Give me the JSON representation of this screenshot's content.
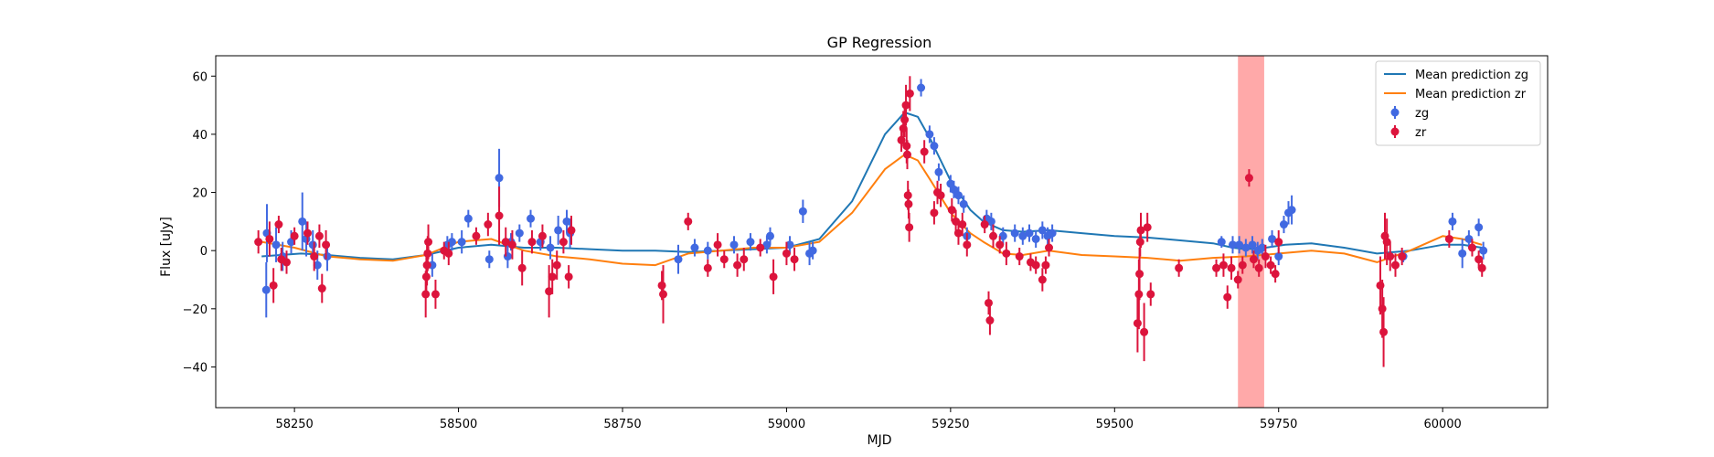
{
  "chart_data": {
    "type": "scatter",
    "title": "GP Regression",
    "xlabel": "MJD",
    "ylabel": "Flux [uJy]",
    "xlim": [
      58130,
      60160
    ],
    "ylim": [
      -54,
      67
    ],
    "xticks": [
      58250,
      58500,
      58750,
      59000,
      59250,
      59500,
      59750,
      60000
    ],
    "yticks": [
      -40,
      -20,
      0,
      20,
      40,
      60
    ],
    "xtick_labels": [
      "58250",
      "58500",
      "58750",
      "59000",
      "59250",
      "59500",
      "59750",
      "60000"
    ],
    "ytick_labels": [
      "−40",
      "−20",
      "0",
      "20",
      "40",
      "60"
    ],
    "grid": false,
    "legend_position": "top-right",
    "highlight_band": {
      "x": [
        59688,
        59728
      ],
      "color": "#ff9a9a"
    },
    "series": [
      {
        "name": "Mean prediction zg",
        "kind": "line",
        "color": "#1f77b4",
        "x": [
          58200,
          58260,
          58300,
          58350,
          58400,
          58450,
          58500,
          58550,
          58600,
          58650,
          58700,
          58750,
          58800,
          58850,
          58900,
          58950,
          59000,
          59050,
          59100,
          59150,
          59180,
          59200,
          59220,
          59250,
          59280,
          59300,
          59330,
          59360,
          59400,
          59450,
          59500,
          59550,
          59600,
          59650,
          59680,
          59700,
          59730,
          59760,
          59800,
          59850,
          59900,
          59950,
          60000,
          60030,
          60060
        ],
        "y": [
          -2,
          -1,
          -1.5,
          -2.5,
          -3,
          -1.5,
          1,
          2,
          1,
          1,
          0.5,
          0,
          0,
          -0.5,
          0,
          0.5,
          1,
          4,
          17,
          40,
          47.5,
          46,
          38,
          24,
          14,
          10,
          7,
          6.5,
          7,
          6,
          5,
          4.5,
          3.5,
          2.5,
          1,
          0.5,
          1,
          2,
          2.5,
          1,
          -1,
          0,
          2,
          2,
          1
        ]
      },
      {
        "name": "Mean prediction zr",
        "kind": "line",
        "color": "#ff7f0e",
        "x": [
          58200,
          58250,
          58300,
          58350,
          58400,
          58450,
          58500,
          58550,
          58600,
          58650,
          58700,
          58750,
          58800,
          58850,
          58900,
          58950,
          59000,
          59050,
          59100,
          59150,
          59180,
          59200,
          59220,
          59250,
          59280,
          59300,
          59330,
          59360,
          59400,
          59450,
          59500,
          59550,
          59600,
          59650,
          59700,
          59750,
          59800,
          59850,
          59900,
          59950,
          60000,
          60030,
          60060
        ],
        "y": [
          3,
          1,
          -2,
          -3,
          -3.5,
          -1.5,
          3,
          4,
          0,
          -2,
          -3,
          -4.5,
          -5,
          -1,
          0,
          1,
          1,
          3,
          13,
          28,
          33,
          31,
          24,
          13,
          6,
          3,
          -1,
          -1.5,
          0,
          -1.5,
          -2,
          -2.5,
          -3.5,
          -2.5,
          -2,
          -1,
          0,
          -1,
          -4,
          0,
          5,
          4,
          2
        ]
      },
      {
        "name": "zg",
        "kind": "errorbar",
        "color": "#4169e1",
        "points": [
          [
            58207,
            -13.5,
            9.5
          ],
          [
            58208,
            6,
            10
          ],
          [
            58222,
            2,
            6
          ],
          [
            58232,
            -2,
            5
          ],
          [
            58245,
            3,
            4
          ],
          [
            58262,
            10,
            10
          ],
          [
            58268,
            4,
            6
          ],
          [
            58278,
            2,
            5
          ],
          [
            58285,
            -5,
            5
          ],
          [
            58300,
            -2,
            5
          ],
          [
            58460,
            -5,
            4
          ],
          [
            58483,
            2,
            3
          ],
          [
            58490,
            3,
            3
          ],
          [
            58505,
            3,
            4
          ],
          [
            58515,
            11,
            3
          ],
          [
            58547,
            -3,
            3
          ],
          [
            58562,
            25,
            10
          ],
          [
            58575,
            -2,
            4
          ],
          [
            58580,
            3,
            3
          ],
          [
            58593,
            6,
            3
          ],
          [
            58610,
            11,
            3
          ],
          [
            58625,
            3,
            3
          ],
          [
            58640,
            1,
            4
          ],
          [
            58652,
            7,
            5
          ],
          [
            58665,
            10,
            4
          ],
          [
            58670,
            6,
            5
          ],
          [
            58835,
            -3,
            5
          ],
          [
            58860,
            1,
            3
          ],
          [
            58880,
            0,
            3
          ],
          [
            58920,
            2,
            3
          ],
          [
            58945,
            3,
            3
          ],
          [
            58970,
            2,
            3
          ],
          [
            58975,
            5,
            3
          ],
          [
            59005,
            2,
            3
          ],
          [
            59025,
            13.5,
            4
          ],
          [
            59035,
            -1,
            4
          ],
          [
            59040,
            0,
            3
          ],
          [
            59205,
            56,
            3
          ],
          [
            59218,
            40,
            3
          ],
          [
            59225,
            36,
            3
          ],
          [
            59232,
            27,
            3
          ],
          [
            59250,
            23,
            3
          ],
          [
            59255,
            21,
            3
          ],
          [
            59262,
            19,
            3
          ],
          [
            59270,
            16,
            3
          ],
          [
            59275,
            5,
            3
          ],
          [
            59305,
            11,
            3
          ],
          [
            59312,
            10,
            3
          ],
          [
            59330,
            5,
            3
          ],
          [
            59348,
            6,
            3
          ],
          [
            59360,
            5,
            3
          ],
          [
            59370,
            6,
            3
          ],
          [
            59380,
            4,
            3
          ],
          [
            59390,
            7,
            3
          ],
          [
            59398,
            5,
            3
          ],
          [
            59405,
            6,
            3
          ],
          [
            59663,
            3,
            2
          ],
          [
            59680,
            2,
            3
          ],
          [
            59690,
            2,
            3
          ],
          [
            59700,
            1,
            3
          ],
          [
            59710,
            2,
            3
          ],
          [
            59718,
            0,
            3
          ],
          [
            59725,
            1,
            3
          ],
          [
            59740,
            4,
            3
          ],
          [
            59750,
            -2,
            3
          ],
          [
            59758,
            9,
            3
          ],
          [
            59765,
            13,
            4
          ],
          [
            59770,
            14,
            5
          ],
          [
            59940,
            -2,
            2
          ],
          [
            60015,
            10,
            3
          ],
          [
            60030,
            -1,
            5
          ],
          [
            60040,
            4,
            3
          ],
          [
            60055,
            8,
            3
          ],
          [
            60062,
            0,
            3
          ]
        ]
      },
      {
        "name": "zr",
        "kind": "errorbar",
        "color": "#dc143c",
        "points": [
          [
            58195,
            3,
            4
          ],
          [
            58212,
            4,
            6
          ],
          [
            58218,
            -12,
            6
          ],
          [
            58226,
            9,
            3
          ],
          [
            58230,
            -3,
            4
          ],
          [
            58238,
            -4,
            4
          ],
          [
            58250,
            5,
            3
          ],
          [
            58270,
            6,
            4
          ],
          [
            58280,
            -2,
            5
          ],
          [
            58288,
            5,
            4
          ],
          [
            58292,
            -13,
            5
          ],
          [
            58298,
            2,
            5
          ],
          [
            58450,
            -15,
            8
          ],
          [
            58451,
            -9,
            7
          ],
          [
            58452,
            -5,
            7
          ],
          [
            58453,
            -1,
            6
          ],
          [
            58454,
            3,
            6
          ],
          [
            58465,
            -15,
            5
          ],
          [
            58478,
            0,
            3
          ],
          [
            58485,
            -1,
            4
          ],
          [
            58527,
            5,
            3
          ],
          [
            58545,
            9,
            4
          ],
          [
            58562,
            12,
            10
          ],
          [
            58572,
            3,
            5
          ],
          [
            58582,
            2,
            5
          ],
          [
            58597,
            -6,
            6
          ],
          [
            58612,
            3,
            4
          ],
          [
            58628,
            5,
            4
          ],
          [
            58638,
            -14,
            9
          ],
          [
            58643,
            -9,
            6
          ],
          [
            58650,
            -5,
            5
          ],
          [
            58660,
            3,
            4
          ],
          [
            58668,
            -9,
            4
          ],
          [
            58672,
            7,
            5
          ],
          [
            58810,
            -12,
            5
          ],
          [
            58812,
            -15,
            10
          ],
          [
            58850,
            10,
            3
          ],
          [
            58880,
            -6,
            3
          ],
          [
            58895,
            2,
            4
          ],
          [
            58905,
            -3,
            3
          ],
          [
            58925,
            -5,
            4
          ],
          [
            58935,
            -3,
            4
          ],
          [
            58960,
            1,
            3
          ],
          [
            58980,
            -9,
            6
          ],
          [
            59000,
            -1,
            4
          ],
          [
            59012,
            -3,
            4
          ],
          [
            59175,
            38,
            4
          ],
          [
            59178,
            42,
            6
          ],
          [
            59180,
            45,
            6
          ],
          [
            59182,
            50,
            7
          ],
          [
            59183,
            36,
            6
          ],
          [
            59184,
            33,
            5
          ],
          [
            59185,
            19,
            5
          ],
          [
            59186,
            16,
            5
          ],
          [
            59187,
            8,
            5
          ],
          [
            59188,
            54,
            6
          ],
          [
            59210,
            34,
            4
          ],
          [
            59225,
            13,
            4
          ],
          [
            59230,
            20,
            4
          ],
          [
            59235,
            19,
            4
          ],
          [
            59252,
            14,
            4
          ],
          [
            59258,
            10,
            4
          ],
          [
            59262,
            6,
            4
          ],
          [
            59268,
            9,
            4
          ],
          [
            59275,
            2,
            4
          ],
          [
            59302,
            9,
            3
          ],
          [
            59308,
            -18,
            4
          ],
          [
            59310,
            -24,
            5
          ],
          [
            59315,
            5,
            4
          ],
          [
            59325,
            2,
            3
          ],
          [
            59335,
            -1,
            4
          ],
          [
            59355,
            -2,
            3
          ],
          [
            59372,
            -4,
            3
          ],
          [
            59380,
            -5,
            3
          ],
          [
            59390,
            -10,
            4
          ],
          [
            59395,
            -5,
            3
          ],
          [
            59400,
            1,
            3
          ],
          [
            59535,
            -25,
            10
          ],
          [
            59537,
            -15,
            12
          ],
          [
            59538,
            -8,
            9
          ],
          [
            59539,
            3,
            5
          ],
          [
            59540,
            7,
            6
          ],
          [
            59545,
            -28,
            10
          ],
          [
            59550,
            8,
            5
          ],
          [
            59555,
            -15,
            4
          ],
          [
            59598,
            -6,
            3
          ],
          [
            59655,
            -6,
            3
          ],
          [
            59666,
            -5,
            4
          ],
          [
            59672,
            -16,
            4
          ],
          [
            59678,
            -6,
            4
          ],
          [
            59688,
            -10,
            3
          ],
          [
            59695,
            -5,
            3
          ],
          [
            59705,
            25,
            3
          ],
          [
            59712,
            -3,
            3
          ],
          [
            59720,
            -6,
            3
          ],
          [
            59730,
            -2,
            4
          ],
          [
            59738,
            -5,
            3
          ],
          [
            59745,
            -8,
            3
          ],
          [
            59750,
            3,
            4
          ],
          [
            59905,
            -12,
            10
          ],
          [
            59908,
            -20,
            10
          ],
          [
            59910,
            -28,
            12
          ],
          [
            59912,
            5,
            8
          ],
          [
            59915,
            3,
            8
          ],
          [
            59920,
            -2,
            5
          ],
          [
            59928,
            -5,
            4
          ],
          [
            59938,
            -2,
            3
          ],
          [
            60010,
            4,
            3
          ],
          [
            60045,
            1,
            3
          ],
          [
            60055,
            -3,
            3
          ],
          [
            60060,
            -6,
            3
          ]
        ]
      }
    ]
  }
}
